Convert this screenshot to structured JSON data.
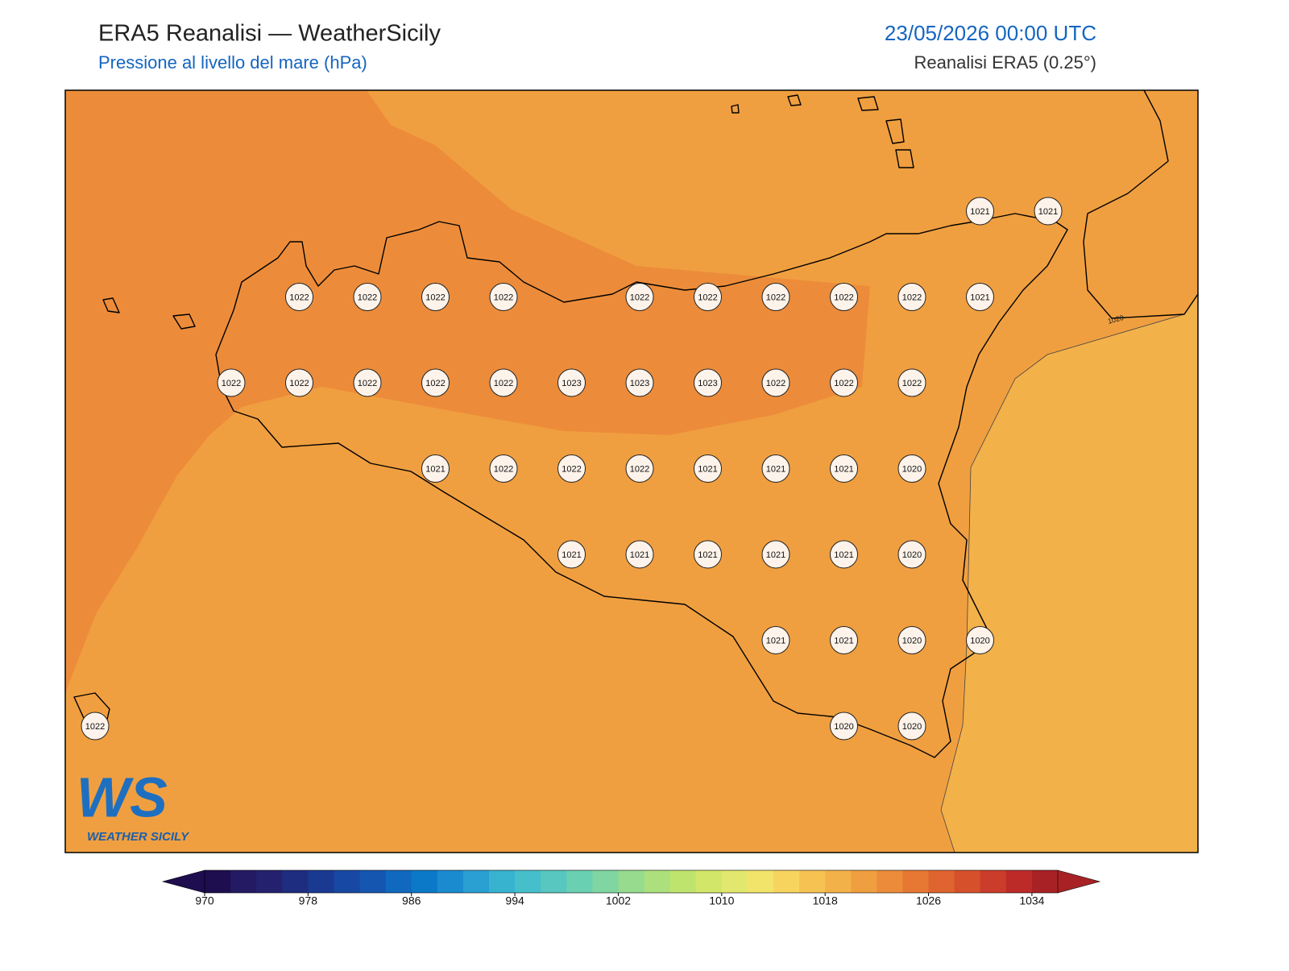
{
  "header": {
    "title": "ERA5 Reanalisi — WeatherSicily",
    "subtitle": "Pressione al livello del mare (hPa)",
    "datetime": "23/05/2026 00:00 UTC",
    "source": "Reanalisi ERA5 (0.25°)"
  },
  "map": {
    "contour_label": "1020",
    "grid": [
      [
        null,
        null,
        null,
        null,
        null,
        null,
        null,
        null,
        null,
        null,
        null,
        null,
        null,
        1021,
        1021
      ],
      [
        null,
        null,
        null,
        1022,
        1022,
        1022,
        1022,
        null,
        1022,
        1022,
        1022,
        1022,
        1022,
        1021,
        null
      ],
      [
        null,
        null,
        1022,
        1022,
        1022,
        1022,
        1022,
        1023,
        1023,
        1023,
        1022,
        1022,
        1022,
        null,
        null
      ],
      [
        null,
        null,
        null,
        null,
        null,
        1021,
        1022,
        1022,
        1022,
        1021,
        1021,
        1021,
        1020,
        null,
        null
      ],
      [
        null,
        null,
        null,
        null,
        null,
        null,
        null,
        1021,
        1021,
        1021,
        1021,
        1021,
        1020,
        null,
        null
      ],
      [
        null,
        null,
        null,
        null,
        null,
        null,
        null,
        null,
        null,
        null,
        1021,
        1021,
        1020,
        1020,
        null
      ],
      [
        1022,
        null,
        null,
        null,
        null,
        null,
        null,
        null,
        null,
        null,
        null,
        1020,
        1020,
        null,
        null
      ]
    ]
  },
  "colorbar": {
    "range": [
      970,
      1036
    ],
    "ticks": [
      970,
      978,
      986,
      994,
      1002,
      1010,
      1018,
      1026,
      1034
    ],
    "colors": [
      "#1e0d4f",
      "#231a63",
      "#24216f",
      "#1f2d80",
      "#1a3a92",
      "#1748a3",
      "#1556b0",
      "#1168bf",
      "#0c79c8",
      "#1a8bcf",
      "#2a9fd2",
      "#37b3d0",
      "#46bfcb",
      "#57c7c0",
      "#6ad0b2",
      "#7fd6a2",
      "#96db8e",
      "#abe07c",
      "#bfe46d",
      "#d2e76a",
      "#e2e86e",
      "#f2e46a",
      "#f7d45e",
      "#f6c352",
      "#f3b149",
      "#f09f40",
      "#ec8c3a",
      "#e67834",
      "#df642f",
      "#d6502c",
      "#cb3c2a",
      "#bd2b28",
      "#a82225"
    ]
  },
  "logo": {
    "mark": "WS",
    "text": "WEATHER SICILY"
  }
}
